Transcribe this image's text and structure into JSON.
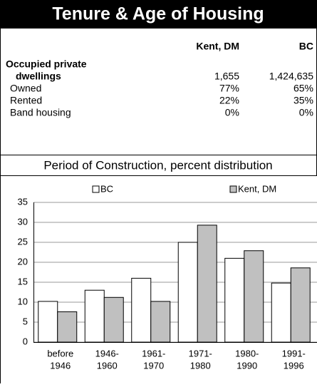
{
  "header": {
    "title": "Tenure & Age of Housing"
  },
  "table": {
    "columns": [
      "Kent, DM",
      "BC"
    ],
    "rows": [
      {
        "label": [
          "Occupied private",
          "dwellings"
        ],
        "values": [
          "1,655",
          "1,424,635"
        ]
      },
      {
        "label": "Owned",
        "values": [
          "77%",
          "65%"
        ]
      },
      {
        "label": "Rented",
        "values": [
          "22%",
          "35%"
        ]
      },
      {
        "label": "Band housing",
        "values": [
          "0%",
          "0%"
        ]
      }
    ]
  },
  "chart_data": {
    "type": "bar",
    "title": "Period of Construction, percent distribution",
    "categories": [
      [
        "before",
        "1946"
      ],
      [
        "1946-",
        "1960"
      ],
      [
        "1961-",
        "1970"
      ],
      [
        "1971-",
        "1980"
      ],
      [
        "1980-",
        "1990"
      ],
      [
        "1991-",
        "1996"
      ]
    ],
    "series": [
      {
        "name": "BC",
        "color": "#ffffff",
        "values": [
          10.2,
          13,
          16,
          25,
          21,
          14.8
        ]
      },
      {
        "name": "Kent, DM",
        "color": "#c0c0c0",
        "values": [
          7.6,
          11.2,
          10.2,
          29.3,
          22.9,
          18.6
        ]
      }
    ],
    "ylim": [
      0,
      35
    ],
    "yticks": [
      0,
      5,
      10,
      15,
      20,
      25,
      30,
      35
    ],
    "grid": true
  }
}
